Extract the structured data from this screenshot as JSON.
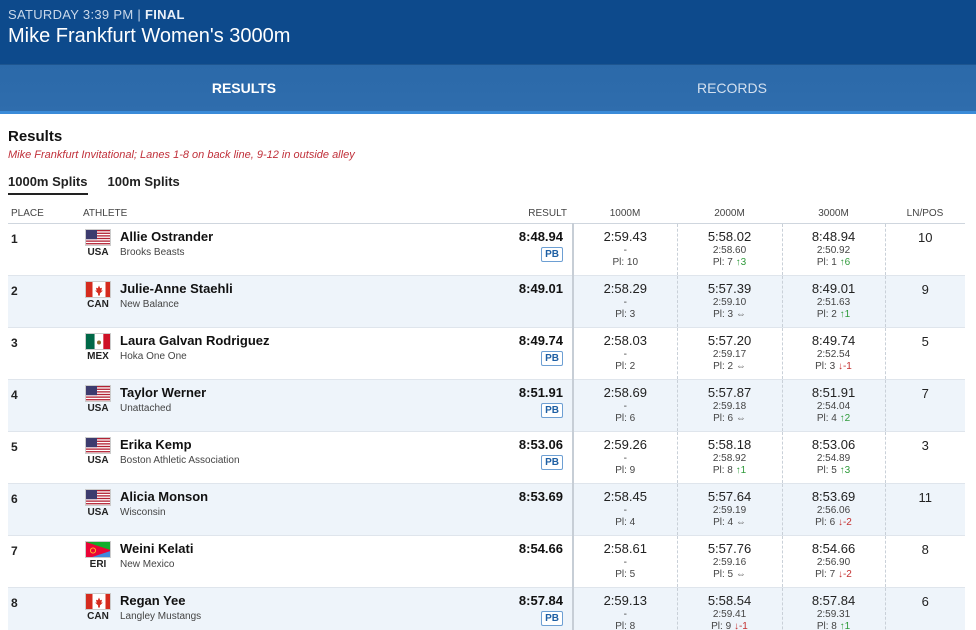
{
  "header": {
    "meta": "SATURDAY 3:39 PM |",
    "status": "FINAL",
    "title": "Mike Frankfurt Women's 3000m"
  },
  "tabs": [
    {
      "label": "RESULTS",
      "active": true
    },
    {
      "label": "RECORDS",
      "active": false
    }
  ],
  "results": {
    "title": "Results",
    "note": "Mike Frankfurt Invitational; Lanes 1-8 on back line, 9-12 in outside alley",
    "split_tabs": [
      {
        "label": "1000m Splits",
        "active": true
      },
      {
        "label": "100m Splits",
        "active": false
      }
    ],
    "columns": {
      "place": "PLACE",
      "athlete": "ATHLETE",
      "result": "RESULT",
      "s1": "1000M",
      "s2": "2000M",
      "s3": "3000M",
      "lane": "LN/POS"
    },
    "rows": [
      {
        "place": "1",
        "country": "USA",
        "name": "Allie Ostrander",
        "team": "Brooks Beasts",
        "result": "8:48.94",
        "pb": "PB",
        "s1": {
          "time": "2:59.43",
          "lap": "-",
          "pl": "Pl: 10",
          "arrow": "",
          "dir": ""
        },
        "s2": {
          "time": "5:58.02",
          "lap": "2:58.60",
          "pl": "Pl: 7",
          "arrow": "↑3",
          "dir": "up"
        },
        "s3": {
          "time": "8:48.94",
          "lap": "2:50.92",
          "pl": "Pl: 1",
          "arrow": "↑6",
          "dir": "up"
        },
        "lane": "10"
      },
      {
        "place": "2",
        "country": "CAN",
        "name": "Julie-Anne Staehli",
        "team": "New Balance",
        "result": "8:49.01",
        "pb": "",
        "s1": {
          "time": "2:58.29",
          "lap": "-",
          "pl": "Pl: 3",
          "arrow": "",
          "dir": ""
        },
        "s2": {
          "time": "5:57.39",
          "lap": "2:59.10",
          "pl": "Pl: 3",
          "arrow": "⇔",
          "dir": "same"
        },
        "s3": {
          "time": "8:49.01",
          "lap": "2:51.63",
          "pl": "Pl: 2",
          "arrow": "↑1",
          "dir": "up"
        },
        "lane": "9"
      },
      {
        "place": "3",
        "country": "MEX",
        "name": "Laura Galvan Rodriguez",
        "team": "Hoka One One",
        "result": "8:49.74",
        "pb": "PB",
        "s1": {
          "time": "2:58.03",
          "lap": "-",
          "pl": "Pl: 2",
          "arrow": "",
          "dir": ""
        },
        "s2": {
          "time": "5:57.20",
          "lap": "2:59.17",
          "pl": "Pl: 2",
          "arrow": "⇔",
          "dir": "same"
        },
        "s3": {
          "time": "8:49.74",
          "lap": "2:52.54",
          "pl": "Pl: 3",
          "arrow": "↓-1",
          "dir": "down"
        },
        "lane": "5"
      },
      {
        "place": "4",
        "country": "USA",
        "name": "Taylor Werner",
        "team": "Unattached",
        "result": "8:51.91",
        "pb": "PB",
        "s1": {
          "time": "2:58.69",
          "lap": "-",
          "pl": "Pl: 6",
          "arrow": "",
          "dir": ""
        },
        "s2": {
          "time": "5:57.87",
          "lap": "2:59.18",
          "pl": "Pl: 6",
          "arrow": "⇔",
          "dir": "same"
        },
        "s3": {
          "time": "8:51.91",
          "lap": "2:54.04",
          "pl": "Pl: 4",
          "arrow": "↑2",
          "dir": "up"
        },
        "lane": "7"
      },
      {
        "place": "5",
        "country": "USA",
        "name": "Erika Kemp",
        "team": "Boston Athletic Association",
        "result": "8:53.06",
        "pb": "PB",
        "s1": {
          "time": "2:59.26",
          "lap": "-",
          "pl": "Pl: 9",
          "arrow": "",
          "dir": ""
        },
        "s2": {
          "time": "5:58.18",
          "lap": "2:58.92",
          "pl": "Pl: 8",
          "arrow": "↑1",
          "dir": "up"
        },
        "s3": {
          "time": "8:53.06",
          "lap": "2:54.89",
          "pl": "Pl: 5",
          "arrow": "↑3",
          "dir": "up"
        },
        "lane": "3"
      },
      {
        "place": "6",
        "country": "USA",
        "name": "Alicia Monson",
        "team": "Wisconsin",
        "result": "8:53.69",
        "pb": "",
        "s1": {
          "time": "2:58.45",
          "lap": "-",
          "pl": "Pl: 4",
          "arrow": "",
          "dir": ""
        },
        "s2": {
          "time": "5:57.64",
          "lap": "2:59.19",
          "pl": "Pl: 4",
          "arrow": "⇔",
          "dir": "same"
        },
        "s3": {
          "time": "8:53.69",
          "lap": "2:56.06",
          "pl": "Pl: 6",
          "arrow": "↓-2",
          "dir": "down"
        },
        "lane": "11"
      },
      {
        "place": "7",
        "country": "ERI",
        "name": "Weini Kelati",
        "team": "New Mexico",
        "result": "8:54.66",
        "pb": "",
        "s1": {
          "time": "2:58.61",
          "lap": "-",
          "pl": "Pl: 5",
          "arrow": "",
          "dir": ""
        },
        "s2": {
          "time": "5:57.76",
          "lap": "2:59.16",
          "pl": "Pl: 5",
          "arrow": "⇔",
          "dir": "same"
        },
        "s3": {
          "time": "8:54.66",
          "lap": "2:56.90",
          "pl": "Pl: 7",
          "arrow": "↓-2",
          "dir": "down"
        },
        "lane": "8"
      },
      {
        "place": "8",
        "country": "CAN",
        "name": "Regan Yee",
        "team": "Langley Mustangs",
        "result": "8:57.84",
        "pb": "PB",
        "s1": {
          "time": "2:59.13",
          "lap": "-",
          "pl": "Pl: 8",
          "arrow": "",
          "dir": ""
        },
        "s2": {
          "time": "5:58.54",
          "lap": "2:59.41",
          "pl": "Pl: 9",
          "arrow": "↓-1",
          "dir": "down"
        },
        "s3": {
          "time": "8:57.84",
          "lap": "2:59.31",
          "pl": "Pl: 8",
          "arrow": "↑1",
          "dir": "up"
        },
        "lane": "6"
      }
    ]
  }
}
